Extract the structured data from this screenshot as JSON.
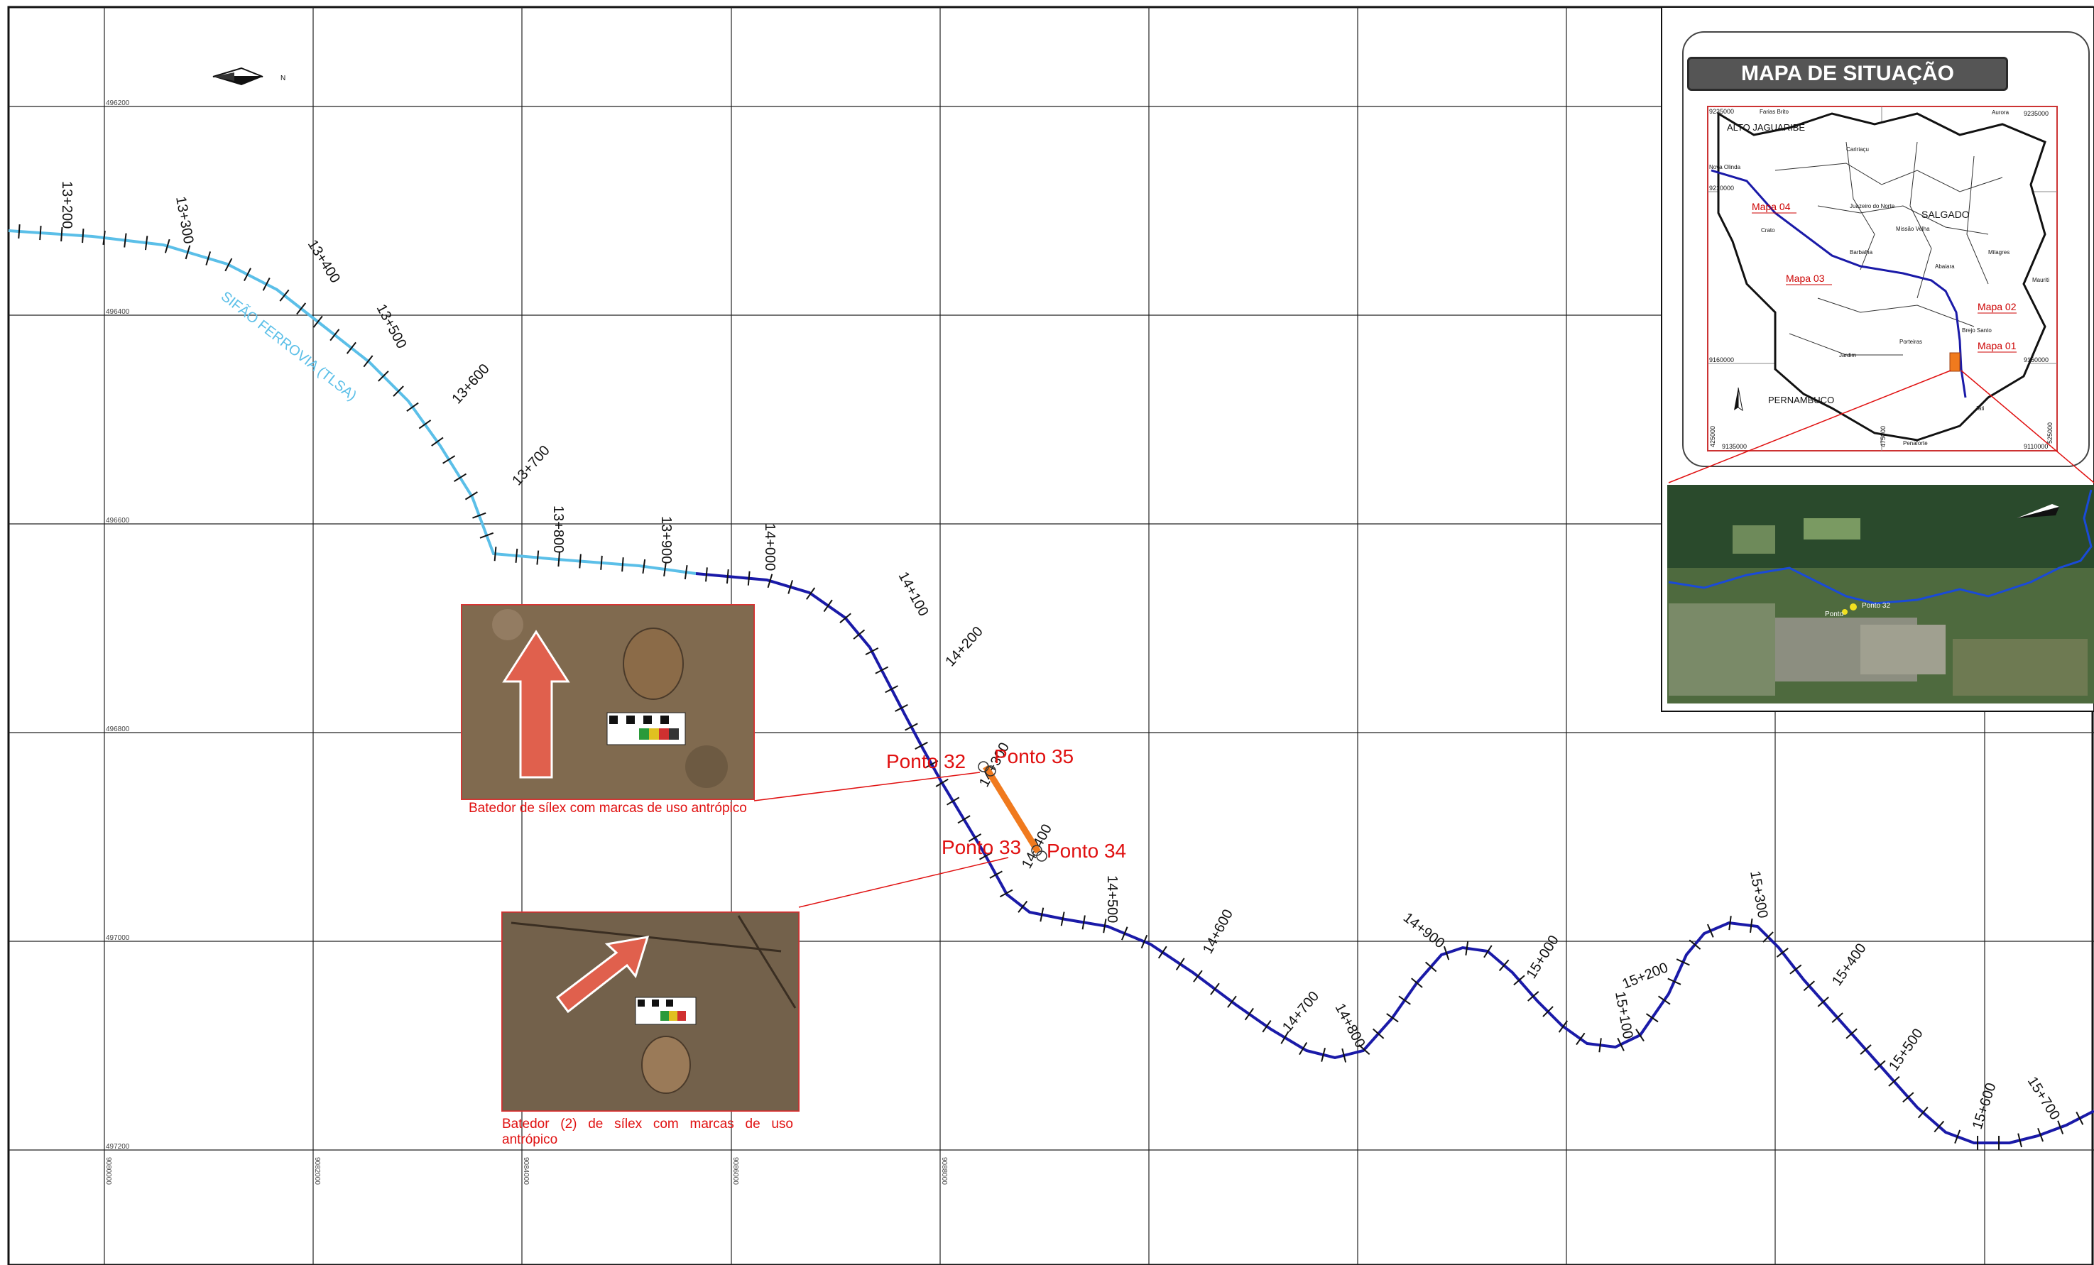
{
  "north_label": "N",
  "grid_northing_labels": [
    "496200",
    "496400",
    "496600",
    "496800",
    "497000",
    "497200"
  ],
  "grid_easting_labels": [
    "9080000",
    "9082000",
    "9084000",
    "9086000",
    "9088000"
  ],
  "chainage": {
    "light": [
      "13+200",
      "13+300",
      "13+400",
      "13+500",
      "13+600",
      "13+700",
      "13+800",
      "13+900"
    ],
    "dark": [
      "14+000",
      "14+100",
      "14+200",
      "14+300",
      "14+400",
      "14+500",
      "14+600",
      "14+700",
      "14+800",
      "14+900",
      "15+000",
      "15+100",
      "15+200",
      "15+300",
      "15+400",
      "15+500",
      "15+600",
      "15+700"
    ]
  },
  "canal_label": "SIFÃO FERROVIA (TLSA)",
  "points": {
    "p32": "Ponto 32",
    "p35": "Ponto 35",
    "p33": "Ponto 33",
    "p34": "Ponto 34"
  },
  "photos": {
    "photo1_caption": "Batedor de sílex com marcas de uso antrópico",
    "photo2_caption": "Batedor (2) de sílex com marcas de uso antrópico"
  },
  "inset": {
    "title": "MAPA DE SITUAÇÃO",
    "regions": [
      "ALTO JAGUARIBE",
      "SALGADO",
      "PERNAMBUCO"
    ],
    "map_refs": [
      "Mapa 04",
      "Mapa 03",
      "Mapa 02",
      "Mapa 01"
    ],
    "towns": [
      "Farias Brito",
      "Aurora",
      "Caririaçu",
      "Crato",
      "Juazeiro do Norte",
      "Missão Velha",
      "Barbalha",
      "Abaiara",
      "Milagres",
      "Mauriti",
      "Brejo Santo",
      "Porteiras",
      "Jardim",
      "Jati",
      "Penaforte",
      "Nova Olinda"
    ],
    "coords": [
      "9235000",
      "9210000",
      "9160000",
      "9135000",
      "9110000",
      "425000",
      "475000",
      "525000",
      "9160000",
      "9235000"
    ],
    "sat_label_a": "Ponto 32",
    "sat_label_b": "Ponto"
  },
  "colors": {
    "canal_light": "#5bbfe8",
    "canal_dark": "#1a1aa8",
    "accent_red": "#e01010",
    "segment_orange": "#f07a1e",
    "grid": "#222222"
  }
}
